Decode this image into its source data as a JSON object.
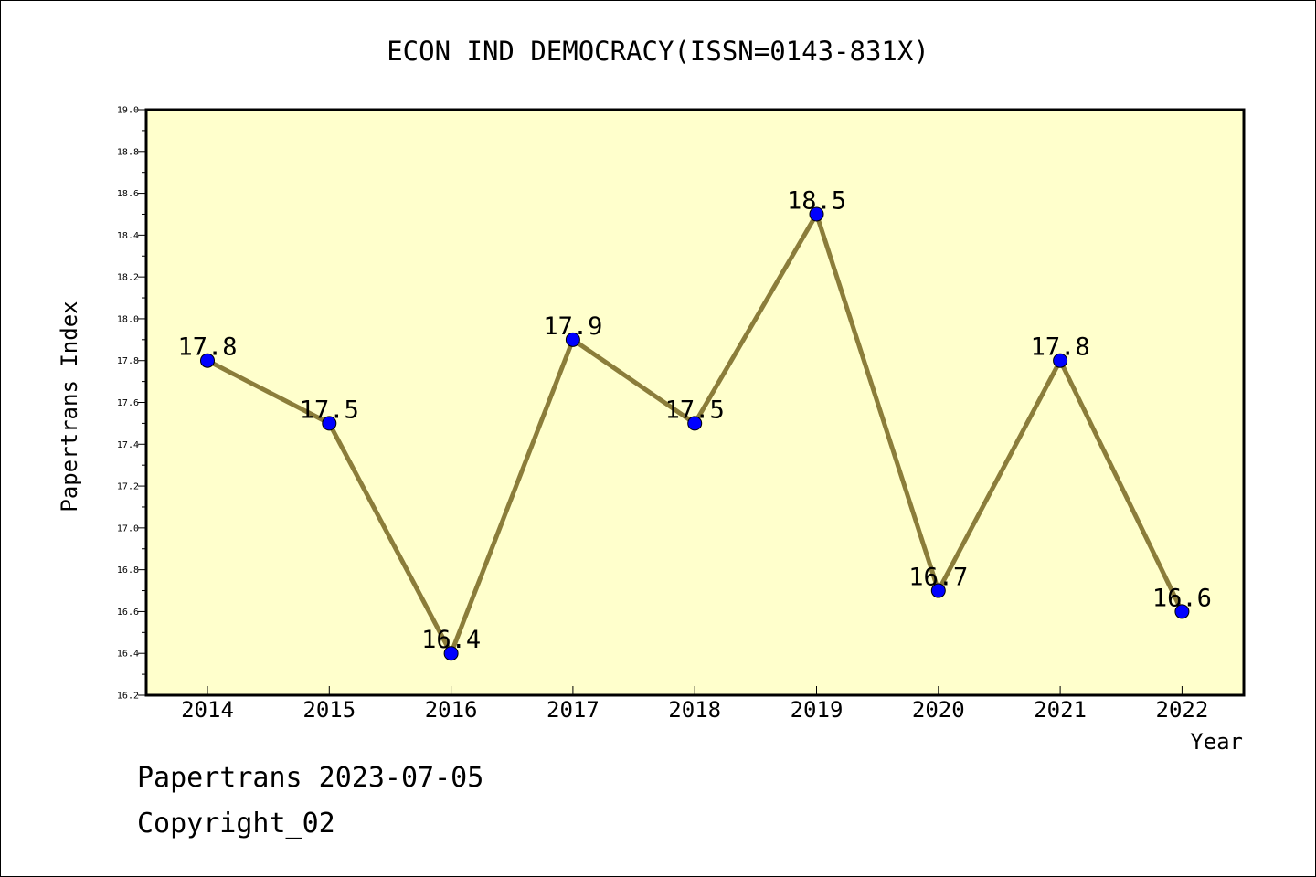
{
  "chart_data": {
    "type": "line",
    "title": "ECON IND DEMOCRACY(ISSN=0143-831X)",
    "xlabel": "Year",
    "ylabel": "Papertrans Index",
    "categories": [
      "2014",
      "2015",
      "2016",
      "2017",
      "2018",
      "2019",
      "2020",
      "2021",
      "2022"
    ],
    "series": [
      {
        "values": [
          17.8,
          17.5,
          16.4,
          17.9,
          17.5,
          18.5,
          16.7,
          17.8,
          16.6
        ],
        "labels": [
          "17.8",
          "17.5",
          "16.4",
          "17.9",
          "17.5",
          "18.5",
          "16.7",
          "17.8",
          "16.6"
        ]
      }
    ],
    "ylim": [
      16.2,
      19.0
    ],
    "yticks": [
      "16.2",
      "16.4",
      "16.6",
      "16.8",
      "17.0",
      "17.2",
      "17.4",
      "17.6",
      "17.8",
      "18.0",
      "18.2",
      "18.4",
      "18.6",
      "18.8",
      "19.0"
    ],
    "grid": false,
    "colors": {
      "plot_background": "#ffffcc",
      "line": "#8b7d3a",
      "marker": "#0000ff",
      "axis": "#000000"
    }
  },
  "footer": {
    "line1": "Papertrans 2023-07-05",
    "line2": "Copyright_02"
  }
}
